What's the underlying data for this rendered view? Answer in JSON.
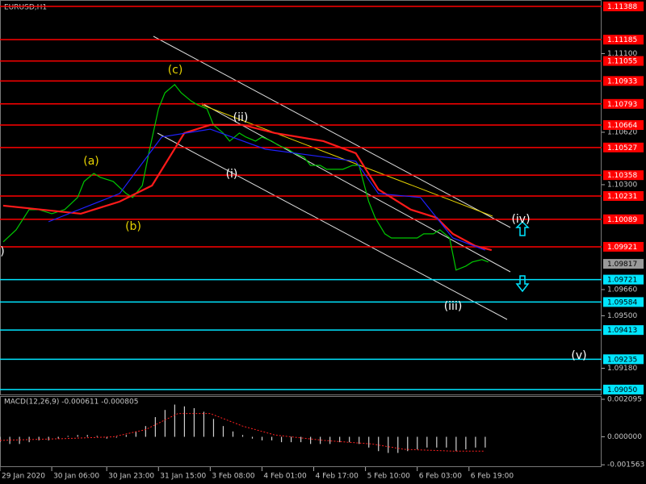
{
  "chart_data": [
    {
      "type": "line",
      "title": "EURUSD,H1",
      "xlim": [
        0,
        186
      ],
      "ylim": [
        1.0902,
        1.11427
      ],
      "xticks": [
        {
          "value": 0,
          "label": "29 Jan 2020"
        },
        {
          "value": 16,
          "label": "30 Jan 06:00"
        },
        {
          "value": 33,
          "label": "30 Jan 23:00"
        },
        {
          "value": 49,
          "label": "31 Jan 15:00"
        },
        {
          "value": 65,
          "label": "3 Feb 08:00"
        },
        {
          "value": 81,
          "label": "4 Feb 01:00"
        },
        {
          "value": 97,
          "label": "4 Feb 17:00"
        },
        {
          "value": 113,
          "label": "5 Feb 10:00"
        },
        {
          "value": 129,
          "label": "6 Feb 03:00"
        },
        {
          "value": 145,
          "label": "6 Feb 19:00"
        }
      ],
      "yticks": [
        {
          "value": 1.111,
          "label": "1.11100"
        },
        {
          "value": 1.1062,
          "label": "1.10620"
        },
        {
          "value": 1.103,
          "label": "1.10300"
        },
        {
          "value": 1.0966,
          "label": "1.09660"
        },
        {
          "value": 1.095,
          "label": "1.09500"
        },
        {
          "value": 1.0918,
          "label": "1.09180"
        }
      ],
      "resistance_levels": [
        1.11388,
        1.11185,
        1.11055,
        1.10933,
        1.10793,
        1.10664,
        1.10527,
        1.10358,
        1.10231,
        1.10089,
        1.09921
      ],
      "resistance_color": "#ff0000",
      "support_levels": [
        1.09721,
        1.09584,
        1.09413,
        1.09235,
        {
          "value": 1.0905,
          "label": "1.09050"
        }
      ],
      "support_color": "#00e5ff",
      "current_price": 1.09817,
      "series": [
        {
          "color": "#00c800",
          "x": [
            1,
            5,
            9,
            12,
            16,
            20,
            24,
            26,
            29,
            31,
            35,
            39,
            41,
            44,
            46,
            49,
            51,
            54,
            56,
            59,
            61,
            64,
            66,
            69,
            71,
            74,
            76,
            79,
            81,
            84,
            86,
            89,
            91,
            94,
            96,
            99,
            101,
            104,
            106,
            109,
            111,
            114,
            116,
            119,
            121,
            124,
            126,
            129,
            131,
            134,
            136,
            139,
            141,
            144,
            146,
            149,
            151
          ],
          "values": [
            1.09951,
            1.10025,
            1.10148,
            1.10148,
            1.10123,
            1.10148,
            1.10222,
            1.1032,
            1.10369,
            1.10345,
            1.1032,
            1.10246,
            1.10222,
            1.10295,
            1.10492,
            1.10763,
            1.10861,
            1.10911,
            1.10861,
            1.10812,
            1.10788,
            1.10763,
            1.10665,
            1.10615,
            1.10566,
            1.10615,
            1.10591,
            1.10566,
            1.10591,
            1.10566,
            1.10541,
            1.10517,
            1.10492,
            1.10468,
            1.10418,
            1.10418,
            1.10394,
            1.10394,
            1.10394,
            1.10418,
            1.10418,
            1.10197,
            1.10098,
            1.1,
            1.09975,
            1.09975,
            1.09975,
            1.09975,
            1.1,
            1.1,
            1.10025,
            1.09975,
            1.09779,
            1.09803,
            1.09828,
            1.09843,
            1.09828
          ]
        },
        {
          "color": "#ff1a1a",
          "x": [
            1,
            25,
            37,
            47,
            57,
            65,
            75,
            85,
            100,
            110,
            117,
            127,
            135,
            140,
            147,
            152
          ],
          "values": [
            1.10172,
            1.10123,
            1.10197,
            1.10295,
            1.10615,
            1.10665,
            1.10665,
            1.10615,
            1.10566,
            1.10492,
            1.10271,
            1.10148,
            1.10098,
            1.1,
            1.09926,
            1.09901
          ]
        },
        {
          "color": "#2020ff",
          "x": [
            15,
            37,
            50,
            65,
            82,
            110,
            117,
            130,
            140,
            150
          ],
          "values": [
            1.10074,
            1.10246,
            1.10591,
            1.10639,
            1.10517,
            1.10443,
            1.10246,
            1.10222,
            1.09975,
            1.09901
          ]
        }
      ],
      "annotations": [
        {
          "text": "(a)",
          "color": "#e6d200"
        },
        {
          "text": "(b)",
          "color": "#e6d200"
        },
        {
          "text": "(c)",
          "color": "#e6d200"
        },
        {
          "text": ")",
          "color": "#ffffff"
        },
        {
          "text": "(i)",
          "color": "#ffffff"
        },
        {
          "text": "(ii)",
          "color": "#ffffff"
        },
        {
          "text": "(iii)",
          "color": "#ffffff"
        },
        {
          "text": "(iv)",
          "color": "#ffffff"
        },
        {
          "text": "(v)",
          "color": "#ffffff"
        }
      ]
    },
    {
      "type": "bar",
      "title": "MACD(12,26,9) -0.000611 -0.000805",
      "xlim": [
        0,
        186
      ],
      "ylim": [
        -0.00169,
        0.00223
      ],
      "yticks": [
        0.002095,
        {
          "value": 0,
          "label": "0.000000"
        },
        -0.001563
      ],
      "color": "#d0d0d0",
      "signal_color": "#ff2020",
      "x": [
        0,
        3,
        6,
        9,
        12,
        15,
        18,
        21,
        24,
        27,
        30,
        33,
        36,
        39,
        42,
        45,
        48,
        51,
        54,
        57,
        60,
        63,
        66,
        69,
        72,
        75,
        78,
        81,
        84,
        87,
        90,
        93,
        96,
        99,
        102,
        105,
        108,
        111,
        114,
        117,
        120,
        123,
        126,
        129,
        132,
        135,
        138,
        141,
        144,
        147,
        150
      ],
      "values": [
        -0.0003,
        -0.0004,
        -0.0004,
        -0.0003,
        -0.0002,
        -0.0002,
        -0.0001,
        5e-05,
        0.0001,
        0.0001,
        5e-05,
        -0.0001,
        -5e-05,
        0.0001,
        0.0003,
        0.0006,
        0.0011,
        0.0015,
        0.0018,
        0.0017,
        0.0016,
        0.0014,
        0.001,
        0.0006,
        0.0003,
        0.0001,
        -0.0001,
        -0.0002,
        -0.0002,
        -0.0003,
        -0.0003,
        -0.0003,
        -0.0004,
        -0.0004,
        -0.0004,
        -0.0003,
        -0.0003,
        -0.0004,
        -0.0006,
        -0.0008,
        -0.0009,
        -0.0009,
        -0.0008,
        -0.0007,
        -0.0006,
        -0.0006,
        -0.0006,
        -0.0008,
        -0.0007,
        -0.0006,
        -0.0006
      ],
      "signal_x": [
        0,
        20,
        35,
        45,
        55,
        65,
        75,
        85,
        100,
        115,
        125,
        140,
        150
      ],
      "signal": [
        -0.0002,
        -0.0001,
        0,
        0.0004,
        0.0013,
        0.0013,
        0.0006,
        0.0001,
        -0.0002,
        -0.0004,
        -0.0007,
        -0.0008,
        -0.0008
      ]
    }
  ]
}
